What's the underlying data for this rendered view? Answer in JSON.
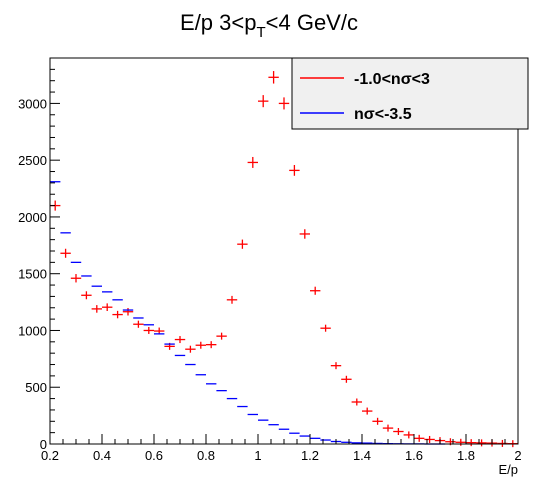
{
  "chart_data": {
    "type": "scatter",
    "title": {
      "main": "E/p 3<p",
      "subscript": "T",
      "tail": "<4 GeV/c"
    },
    "xlabel": "E/p",
    "ylabel": "",
    "xlim": [
      0.2,
      2.0
    ],
    "ylim": [
      0,
      3400
    ],
    "x_ticks": [
      0.2,
      0.4,
      0.6,
      0.8,
      1.0,
      1.2,
      1.4,
      1.6,
      1.8,
      2.0
    ],
    "x_tick_labels": [
      "0.2",
      "0.4",
      "0.6",
      "0.8",
      "1",
      "1.2",
      "1.4",
      "1.6",
      "1.8",
      "2"
    ],
    "y_ticks": [
      0,
      500,
      1000,
      1500,
      2000,
      2500,
      3000
    ],
    "y_tick_labels": [
      "0",
      "500",
      "1000",
      "1500",
      "2000",
      "2500",
      "3000"
    ],
    "bin_width": 0.04,
    "legend_position": "top-right",
    "grid": false,
    "series": [
      {
        "name": "-1.0<nσ<3",
        "color": "#ff0000",
        "marker": "cross",
        "x": [
          0.22,
          0.26,
          0.3,
          0.34,
          0.38,
          0.42,
          0.46,
          0.5,
          0.54,
          0.58,
          0.62,
          0.66,
          0.7,
          0.74,
          0.78,
          0.82,
          0.86,
          0.9,
          0.94,
          0.98,
          1.02,
          1.06,
          1.1,
          1.14,
          1.18,
          1.22,
          1.26,
          1.3,
          1.34,
          1.38,
          1.42,
          1.46,
          1.5,
          1.54,
          1.58,
          1.62,
          1.66,
          1.7,
          1.74,
          1.78,
          1.82,
          1.86,
          1.9,
          1.94,
          1.98
        ],
        "y": [
          2100,
          1680,
          1460,
          1310,
          1190,
          1205,
          1140,
          1165,
          1055,
          1000,
          995,
          860,
          920,
          835,
          870,
          875,
          950,
          1270,
          1760,
          2480,
          3020,
          3230,
          3000,
          2410,
          1850,
          1350,
          1020,
          690,
          570,
          370,
          290,
          200,
          140,
          110,
          80,
          50,
          40,
          30,
          20,
          15,
          12,
          10,
          8,
          5,
          3
        ]
      },
      {
        "name": "nσ<-3.5",
        "color": "#0000ff",
        "marker": "hbar",
        "x": [
          0.22,
          0.26,
          0.3,
          0.34,
          0.38,
          0.42,
          0.46,
          0.5,
          0.54,
          0.58,
          0.62,
          0.66,
          0.7,
          0.74,
          0.78,
          0.82,
          0.86,
          0.9,
          0.94,
          0.98,
          1.02,
          1.06,
          1.1,
          1.14,
          1.18,
          1.22,
          1.26,
          1.3,
          1.34,
          1.38,
          1.42,
          1.46,
          1.5,
          1.54,
          1.58,
          1.62,
          1.66,
          1.7
        ],
        "y": [
          2310,
          1860,
          1600,
          1480,
          1390,
          1340,
          1270,
          1180,
          1110,
          1050,
          970,
          880,
          780,
          700,
          610,
          530,
          470,
          400,
          330,
          260,
          210,
          170,
          130,
          95,
          70,
          50,
          35,
          22,
          15,
          10,
          8,
          5,
          3,
          2,
          1,
          1,
          0,
          0
        ]
      }
    ]
  }
}
